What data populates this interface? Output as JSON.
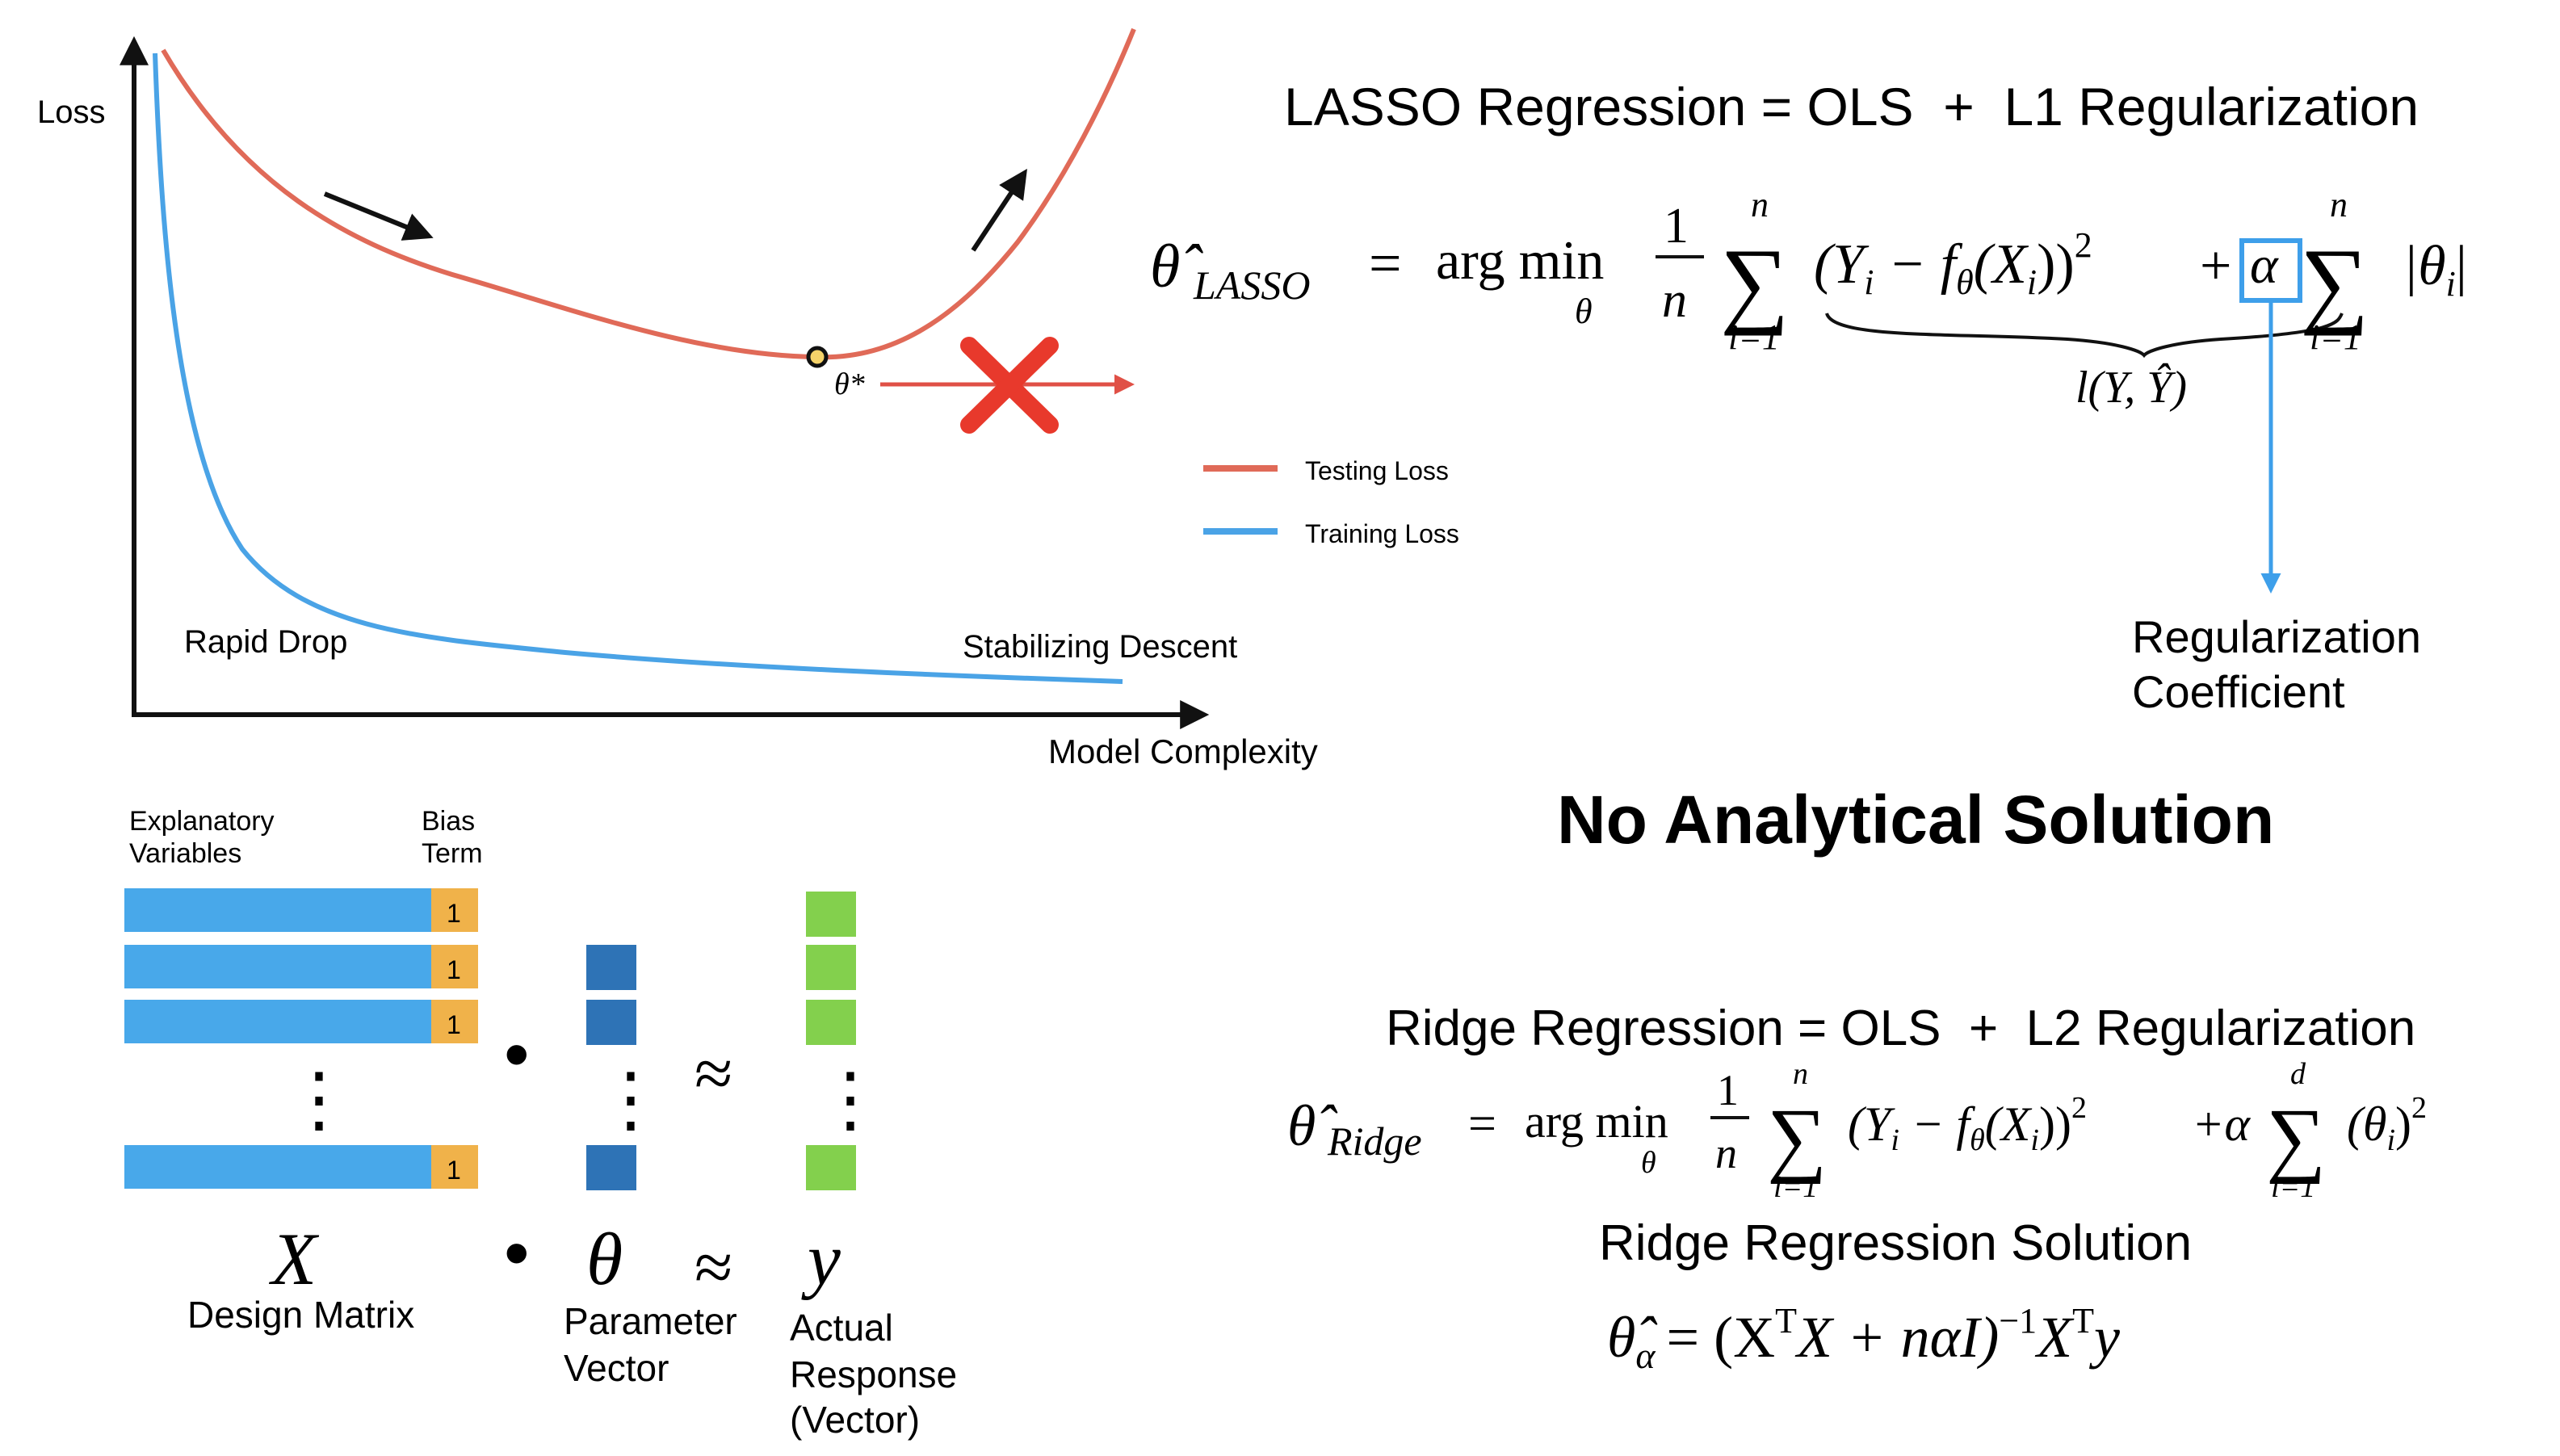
{
  "colors": {
    "testing": "#e06a58",
    "training": "#4aa3e6",
    "axis": "#111111",
    "design_bar": "#48a8ea",
    "bias_cell": "#f0b24a",
    "param_cell": "#2e73b6",
    "resp_cell": "#83d04d",
    "cross": "#e8392c",
    "arrow_red": "#e05046",
    "box_blue": "#3e9fea"
  },
  "chart": {
    "y_axis_label": "Loss",
    "x_axis_label": "Model Complexity",
    "optimum_label": "θ*",
    "annotation_rapid": "Rapid Drop",
    "annotation_stabilizing": "Stabilizing Descent",
    "legend": {
      "testing": "Testing Loss",
      "training": "Training Loss"
    }
  },
  "lasso": {
    "title": "LASSO Regression = OLS  +  L1 Regularization",
    "lhs": "θ̂",
    "lhs_sub": "LASSO",
    "eq": "=",
    "argmin": "arg min",
    "argmin_sub": "θ",
    "frac_num": "1",
    "frac_den": "n",
    "sum_top": "n",
    "sum_bottom": "i=1",
    "sum_symbol": "∑",
    "term": "(Y",
    "term_sub": "i",
    "term_mid": " − f",
    "term_sub2": "θ",
    "term_mid2": "(X",
    "term_sub3": "i",
    "term_end": "))",
    "term_sup": "2",
    "plus": "+",
    "alpha": "α",
    "sum2_top": "n",
    "sum2_bottom": "i=1",
    "abs_term": "|θ",
    "abs_sub": "i",
    "abs_end": "|",
    "loss_label": "l(Y, Ŷ)",
    "reg_coef_line1": "Regularization",
    "reg_coef_line2": "Coefficient"
  },
  "no_solution": "No Analytical Solution",
  "ridge": {
    "title": "Ridge Regression = OLS  +  L2 Regularization",
    "lhs": "θ̂",
    "lhs_sub": "Ridge",
    "eq": "=",
    "argmin": "arg min",
    "argmin_sub": "θ",
    "frac_num": "1",
    "frac_den": "n",
    "sum_top": "n",
    "sum_bottom": "i=1",
    "sum_symbol": "∑",
    "term": "(Y",
    "term_sub": "i",
    "term_mid": " − f",
    "term_sub2": "θ",
    "term_mid2": "(X",
    "term_sub3": "i",
    "term_end": "))",
    "term_sup": "2",
    "plus_alpha": "+α",
    "sum2_top": "d",
    "sum2_bottom": "i=1",
    "sq_term": "(θ",
    "sq_sub": "i",
    "sq_end": ")",
    "sq_sup": "2",
    "solution_title": "Ridge Regression Solution",
    "solution_lhs": "θ̂",
    "solution_lhs_sub": "α",
    "solution_eq": "= (X",
    "solution_sup1": "T",
    "solution_mid": "X + nαI)",
    "solution_sup2": "−1",
    "solution_x": "X",
    "solution_sup3": "T",
    "solution_y": "y"
  },
  "matrix": {
    "header_explanatory_1": "Explanatory",
    "header_explanatory_2": "Variables",
    "header_bias_1": "Bias",
    "header_bias_2": "Term",
    "bias_value": "1",
    "vdots": "⋮",
    "dot": "•",
    "approx": "≈",
    "x_symbol": "X",
    "x_caption": "Design Matrix",
    "theta_symbol": "θ",
    "theta_caption_1": "Parameter",
    "theta_caption_2": "Vector",
    "y_symbol": "y",
    "y_caption_1": "Actual",
    "y_caption_2": "Response",
    "y_caption_3": "(Vector)"
  }
}
